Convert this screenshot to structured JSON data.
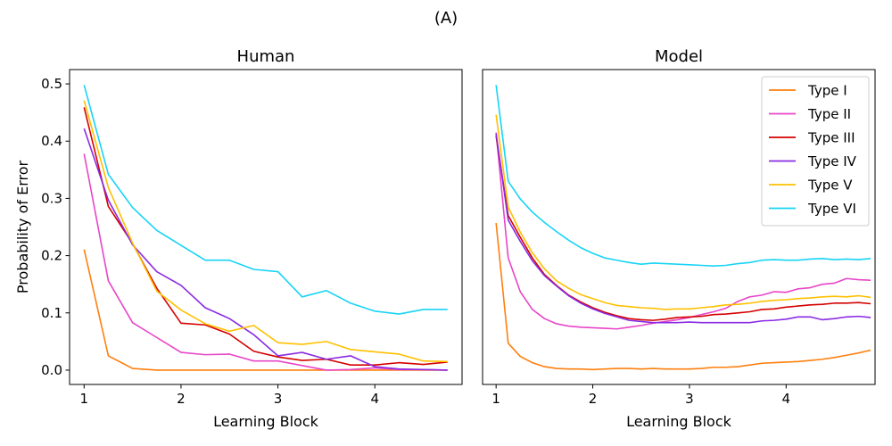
{
  "figure_title": "(A)",
  "chart_data": [
    {
      "type": "line",
      "title": "Human",
      "xlabel": "Learning Block",
      "ylabel": "Probability of Error",
      "xlim": [
        0.85,
        4.9
      ],
      "ylim": [
        -0.025,
        0.525
      ],
      "xticks": [
        1,
        2,
        3,
        4
      ],
      "yticks": [
        0.0,
        0.1,
        0.2,
        0.3,
        0.4,
        0.5
      ],
      "ytick_labels": [
        "0.0",
        "0.1",
        "0.2",
        "0.3",
        "0.4",
        "0.5"
      ],
      "grid": false,
      "x": [
        1.0,
        1.25,
        1.5,
        1.75,
        2.0,
        2.25,
        2.5,
        2.75,
        3.0,
        3.25,
        3.5,
        3.75,
        4.0,
        4.25,
        4.5,
        4.75
      ],
      "series": [
        {
          "name": "Type I",
          "color": "#ff7f0e",
          "values": [
            0.211,
            0.025,
            0.003,
            0.0,
            0.0,
            0.0,
            0.0,
            0.0,
            0.0,
            0.0,
            0.0,
            0.0,
            0.0,
            0.0,
            0.0,
            0.0
          ]
        },
        {
          "name": "Type II",
          "color": "#e845c8",
          "values": [
            0.378,
            0.156,
            0.083,
            0.057,
            0.031,
            0.027,
            0.028,
            0.016,
            0.016,
            0.008,
            0.0,
            0.001,
            0.004,
            0.001,
            0.001,
            0.0
          ]
        },
        {
          "name": "Type III",
          "color": "#d40000",
          "values": [
            0.459,
            0.286,
            0.221,
            0.143,
            0.082,
            0.079,
            0.063,
            0.033,
            0.023,
            0.017,
            0.019,
            0.009,
            0.009,
            0.013,
            0.01,
            0.014
          ]
        },
        {
          "name": "Type IV",
          "color": "#8a2be2",
          "values": [
            0.422,
            0.297,
            0.219,
            0.172,
            0.148,
            0.109,
            0.09,
            0.062,
            0.025,
            0.031,
            0.019,
            0.025,
            0.006,
            0.002,
            0.001,
            0.0
          ]
        },
        {
          "name": "Type V",
          "color": "#ffc000",
          "values": [
            0.471,
            0.319,
            0.222,
            0.138,
            0.105,
            0.081,
            0.068,
            0.078,
            0.048,
            0.045,
            0.05,
            0.036,
            0.032,
            0.028,
            0.016,
            0.015
          ]
        },
        {
          "name": "Type VI",
          "color": "#17d4f5",
          "values": [
            0.498,
            0.342,
            0.284,
            0.244,
            0.218,
            0.192,
            0.192,
            0.176,
            0.172,
            0.128,
            0.139,
            0.117,
            0.103,
            0.098,
            0.106,
            0.106
          ]
        }
      ]
    },
    {
      "type": "line",
      "title": "Model",
      "xlabel": "Learning Block",
      "ylabel": "",
      "xlim": [
        0.86,
        4.92
      ],
      "ylim": [
        -0.025,
        0.525
      ],
      "xticks": [
        1,
        2,
        3,
        4
      ],
      "yticks": [],
      "grid": false,
      "legend": "top-right",
      "x": [
        1.0,
        1.125,
        1.25,
        1.375,
        1.5,
        1.625,
        1.75,
        1.875,
        2.0,
        2.125,
        2.25,
        2.375,
        2.5,
        2.625,
        2.75,
        2.875,
        3.0,
        3.125,
        3.25,
        3.375,
        3.5,
        3.625,
        3.75,
        3.875,
        4.0,
        4.125,
        4.25,
        4.375,
        4.5,
        4.625,
        4.75,
        4.875
      ],
      "series": [
        {
          "name": "Type I",
          "color": "#ff7f0e",
          "values": [
            0.257,
            0.047,
            0.024,
            0.013,
            0.006,
            0.003,
            0.002,
            0.002,
            0.001,
            0.002,
            0.003,
            0.003,
            0.002,
            0.003,
            0.002,
            0.002,
            0.002,
            0.003,
            0.005,
            0.005,
            0.006,
            0.009,
            0.012,
            0.013,
            0.014,
            0.015,
            0.017,
            0.019,
            0.022,
            0.026,
            0.03,
            0.035
          ]
        },
        {
          "name": "Type II",
          "color": "#e845c8",
          "values": [
            0.415,
            0.196,
            0.137,
            0.106,
            0.09,
            0.081,
            0.077,
            0.075,
            0.074,
            0.073,
            0.072,
            0.075,
            0.078,
            0.082,
            0.085,
            0.088,
            0.092,
            0.097,
            0.102,
            0.108,
            0.12,
            0.128,
            0.131,
            0.137,
            0.136,
            0.142,
            0.144,
            0.15,
            0.152,
            0.16,
            0.158,
            0.157
          ]
        },
        {
          "name": "Type III",
          "color": "#d40000",
          "values": [
            0.409,
            0.27,
            0.232,
            0.196,
            0.167,
            0.148,
            0.131,
            0.119,
            0.109,
            0.101,
            0.095,
            0.09,
            0.088,
            0.087,
            0.089,
            0.092,
            0.093,
            0.094,
            0.097,
            0.098,
            0.1,
            0.102,
            0.106,
            0.107,
            0.11,
            0.112,
            0.114,
            0.115,
            0.117,
            0.117,
            0.118,
            0.116
          ]
        },
        {
          "name": "Type IV",
          "color": "#8a2be2",
          "values": [
            0.413,
            0.262,
            0.225,
            0.191,
            0.165,
            0.147,
            0.13,
            0.117,
            0.107,
            0.099,
            0.093,
            0.087,
            0.085,
            0.083,
            0.083,
            0.083,
            0.084,
            0.083,
            0.083,
            0.083,
            0.083,
            0.083,
            0.086,
            0.087,
            0.089,
            0.093,
            0.093,
            0.088,
            0.09,
            0.093,
            0.094,
            0.092
          ]
        },
        {
          "name": "Type V",
          "color": "#ffc000",
          "values": [
            0.446,
            0.285,
            0.241,
            0.205,
            0.177,
            0.156,
            0.143,
            0.132,
            0.125,
            0.118,
            0.113,
            0.111,
            0.109,
            0.108,
            0.106,
            0.107,
            0.107,
            0.109,
            0.111,
            0.114,
            0.115,
            0.117,
            0.12,
            0.122,
            0.123,
            0.125,
            0.126,
            0.128,
            0.129,
            0.128,
            0.13,
            0.127
          ]
        },
        {
          "name": "Type VI",
          "color": "#17d4f5",
          "values": [
            0.498,
            0.33,
            0.299,
            0.276,
            0.258,
            0.242,
            0.227,
            0.214,
            0.204,
            0.196,
            0.192,
            0.188,
            0.185,
            0.187,
            0.186,
            0.185,
            0.184,
            0.183,
            0.182,
            0.183,
            0.186,
            0.188,
            0.192,
            0.193,
            0.192,
            0.192,
            0.194,
            0.195,
            0.193,
            0.194,
            0.193,
            0.195
          ]
        }
      ]
    }
  ]
}
